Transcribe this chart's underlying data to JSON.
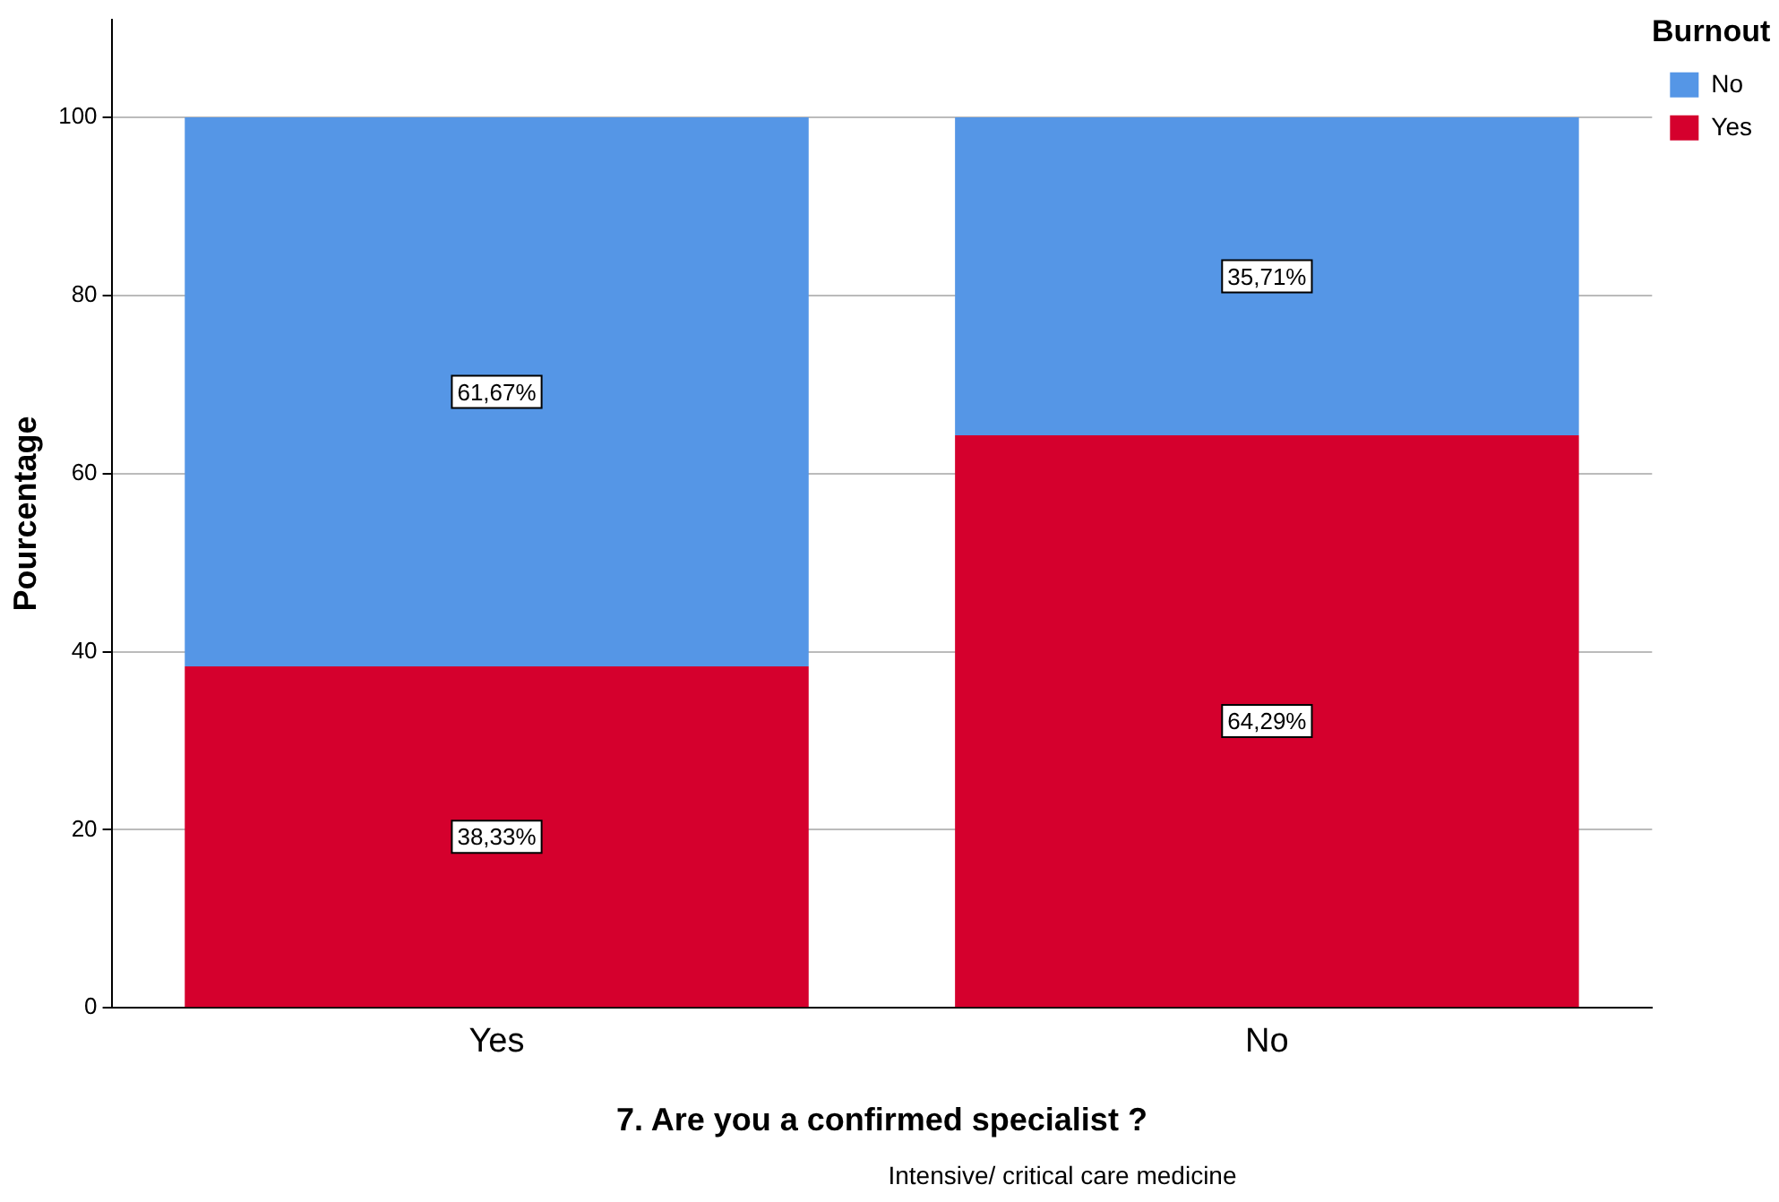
{
  "chart_data": {
    "type": "bar",
    "stacked": true,
    "xlabel": "7. Are you a confirmed specialist ?",
    "ylabel": "Pourcentage",
    "legend_title": "Burnout",
    "legend": "top right",
    "grid": "y",
    "categories": [
      "Yes",
      "No"
    ],
    "series": [
      {
        "name": "Yes",
        "color": "#d5002d",
        "values": [
          38.33,
          64.29
        ],
        "value_labels": [
          "38,33%",
          "64,29%"
        ]
      },
      {
        "name": "No",
        "color": "#5596e6",
        "values": [
          61.67,
          35.71
        ],
        "value_labels": [
          "61,67%",
          "35,71%"
        ]
      }
    ],
    "ylim": [
      0,
      111
    ],
    "yticks": [
      0,
      20,
      40,
      60,
      80,
      100
    ],
    "annotations": [
      "Intensive/ critical care medicine"
    ]
  }
}
